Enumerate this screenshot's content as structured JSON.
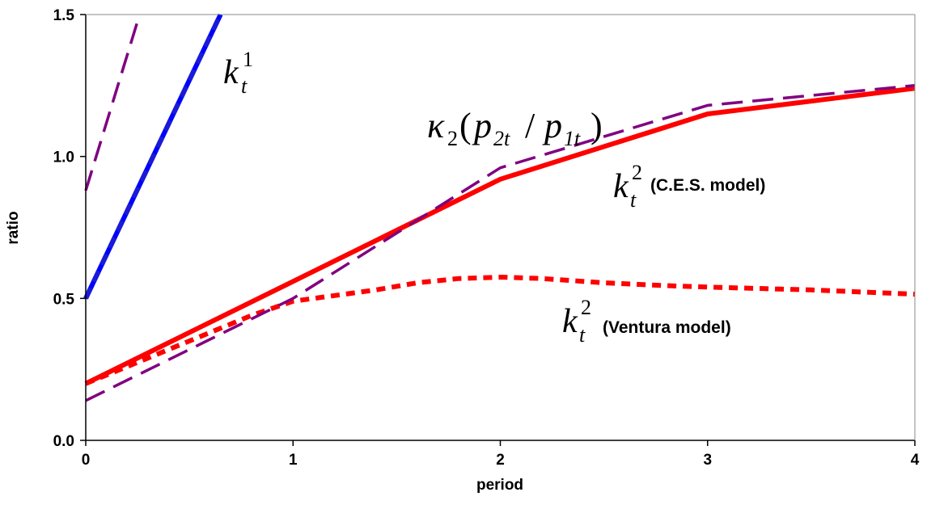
{
  "chart_data": {
    "type": "line",
    "xlabel": "period",
    "ylabel": "ratio",
    "xlim": [
      0,
      4
    ],
    "ylim": [
      0,
      1.5
    ],
    "x_ticks": [
      "0",
      "1",
      "2",
      "3",
      "4"
    ],
    "y_ticks": [
      "0.0",
      "0.5",
      "1.0",
      "1.5"
    ],
    "grid": false,
    "legend": "none",
    "series": [
      {
        "key": "k1",
        "style": "solid",
        "color": "#0000ff",
        "x": [
          0,
          0.65
        ],
        "y": [
          0.5,
          1.5
        ]
      },
      {
        "key": "k1_approx",
        "style": "dashed",
        "color": "#0000ff",
        "x": [
          0,
          0.65
        ],
        "y": [
          0.5,
          1.5
        ]
      },
      {
        "key": "kappa1_approx",
        "style": "dashed",
        "color": "#800080",
        "x": [
          0,
          0.26
        ],
        "y": [
          0.88,
          1.5
        ]
      },
      {
        "key": "k2_ces",
        "style": "solid",
        "color": "#ff0000",
        "x": [
          0,
          1,
          2,
          3,
          4
        ],
        "y": [
          0.2,
          0.56,
          0.92,
          1.15,
          1.24
        ]
      },
      {
        "key": "kappa2_approx",
        "style": "dashed",
        "color": "#800080",
        "x": [
          0,
          1,
          2,
          3,
          4
        ],
        "y": [
          0.14,
          0.5,
          0.96,
          1.18,
          1.25
        ]
      },
      {
        "key": "k2_ventura",
        "style": "dotted",
        "color": "#ff0000",
        "x": [
          0,
          0.2,
          0.4,
          0.6,
          0.8,
          1.0,
          1.2,
          1.4,
          1.6,
          1.8,
          2.0,
          2.2,
          2.5,
          2.8,
          3.0,
          3.5,
          4.0
        ],
        "y": [
          0.2,
          0.26,
          0.32,
          0.38,
          0.44,
          0.49,
          0.51,
          0.53,
          0.555,
          0.57,
          0.575,
          0.57,
          0.555,
          0.545,
          0.54,
          0.53,
          0.515
        ]
      }
    ],
    "annotations": {
      "k1": {
        "base": "k",
        "sub": "t",
        "sup": "1"
      },
      "kappa2": {
        "kappa": "κ",
        "kappa_sub": "2",
        "open": "(",
        "p": "p",
        "sub_a": "2t",
        "slash": "/",
        "sub_b": "1t",
        "close": ")"
      },
      "k2_ces": {
        "base": "k",
        "sub": "t",
        "sup": "2",
        "label": "(C.E.S. model)"
      },
      "k2_ventura": {
        "base": "k",
        "sub": "t",
        "sup": "2",
        "label": "(Ventura model)"
      }
    }
  }
}
